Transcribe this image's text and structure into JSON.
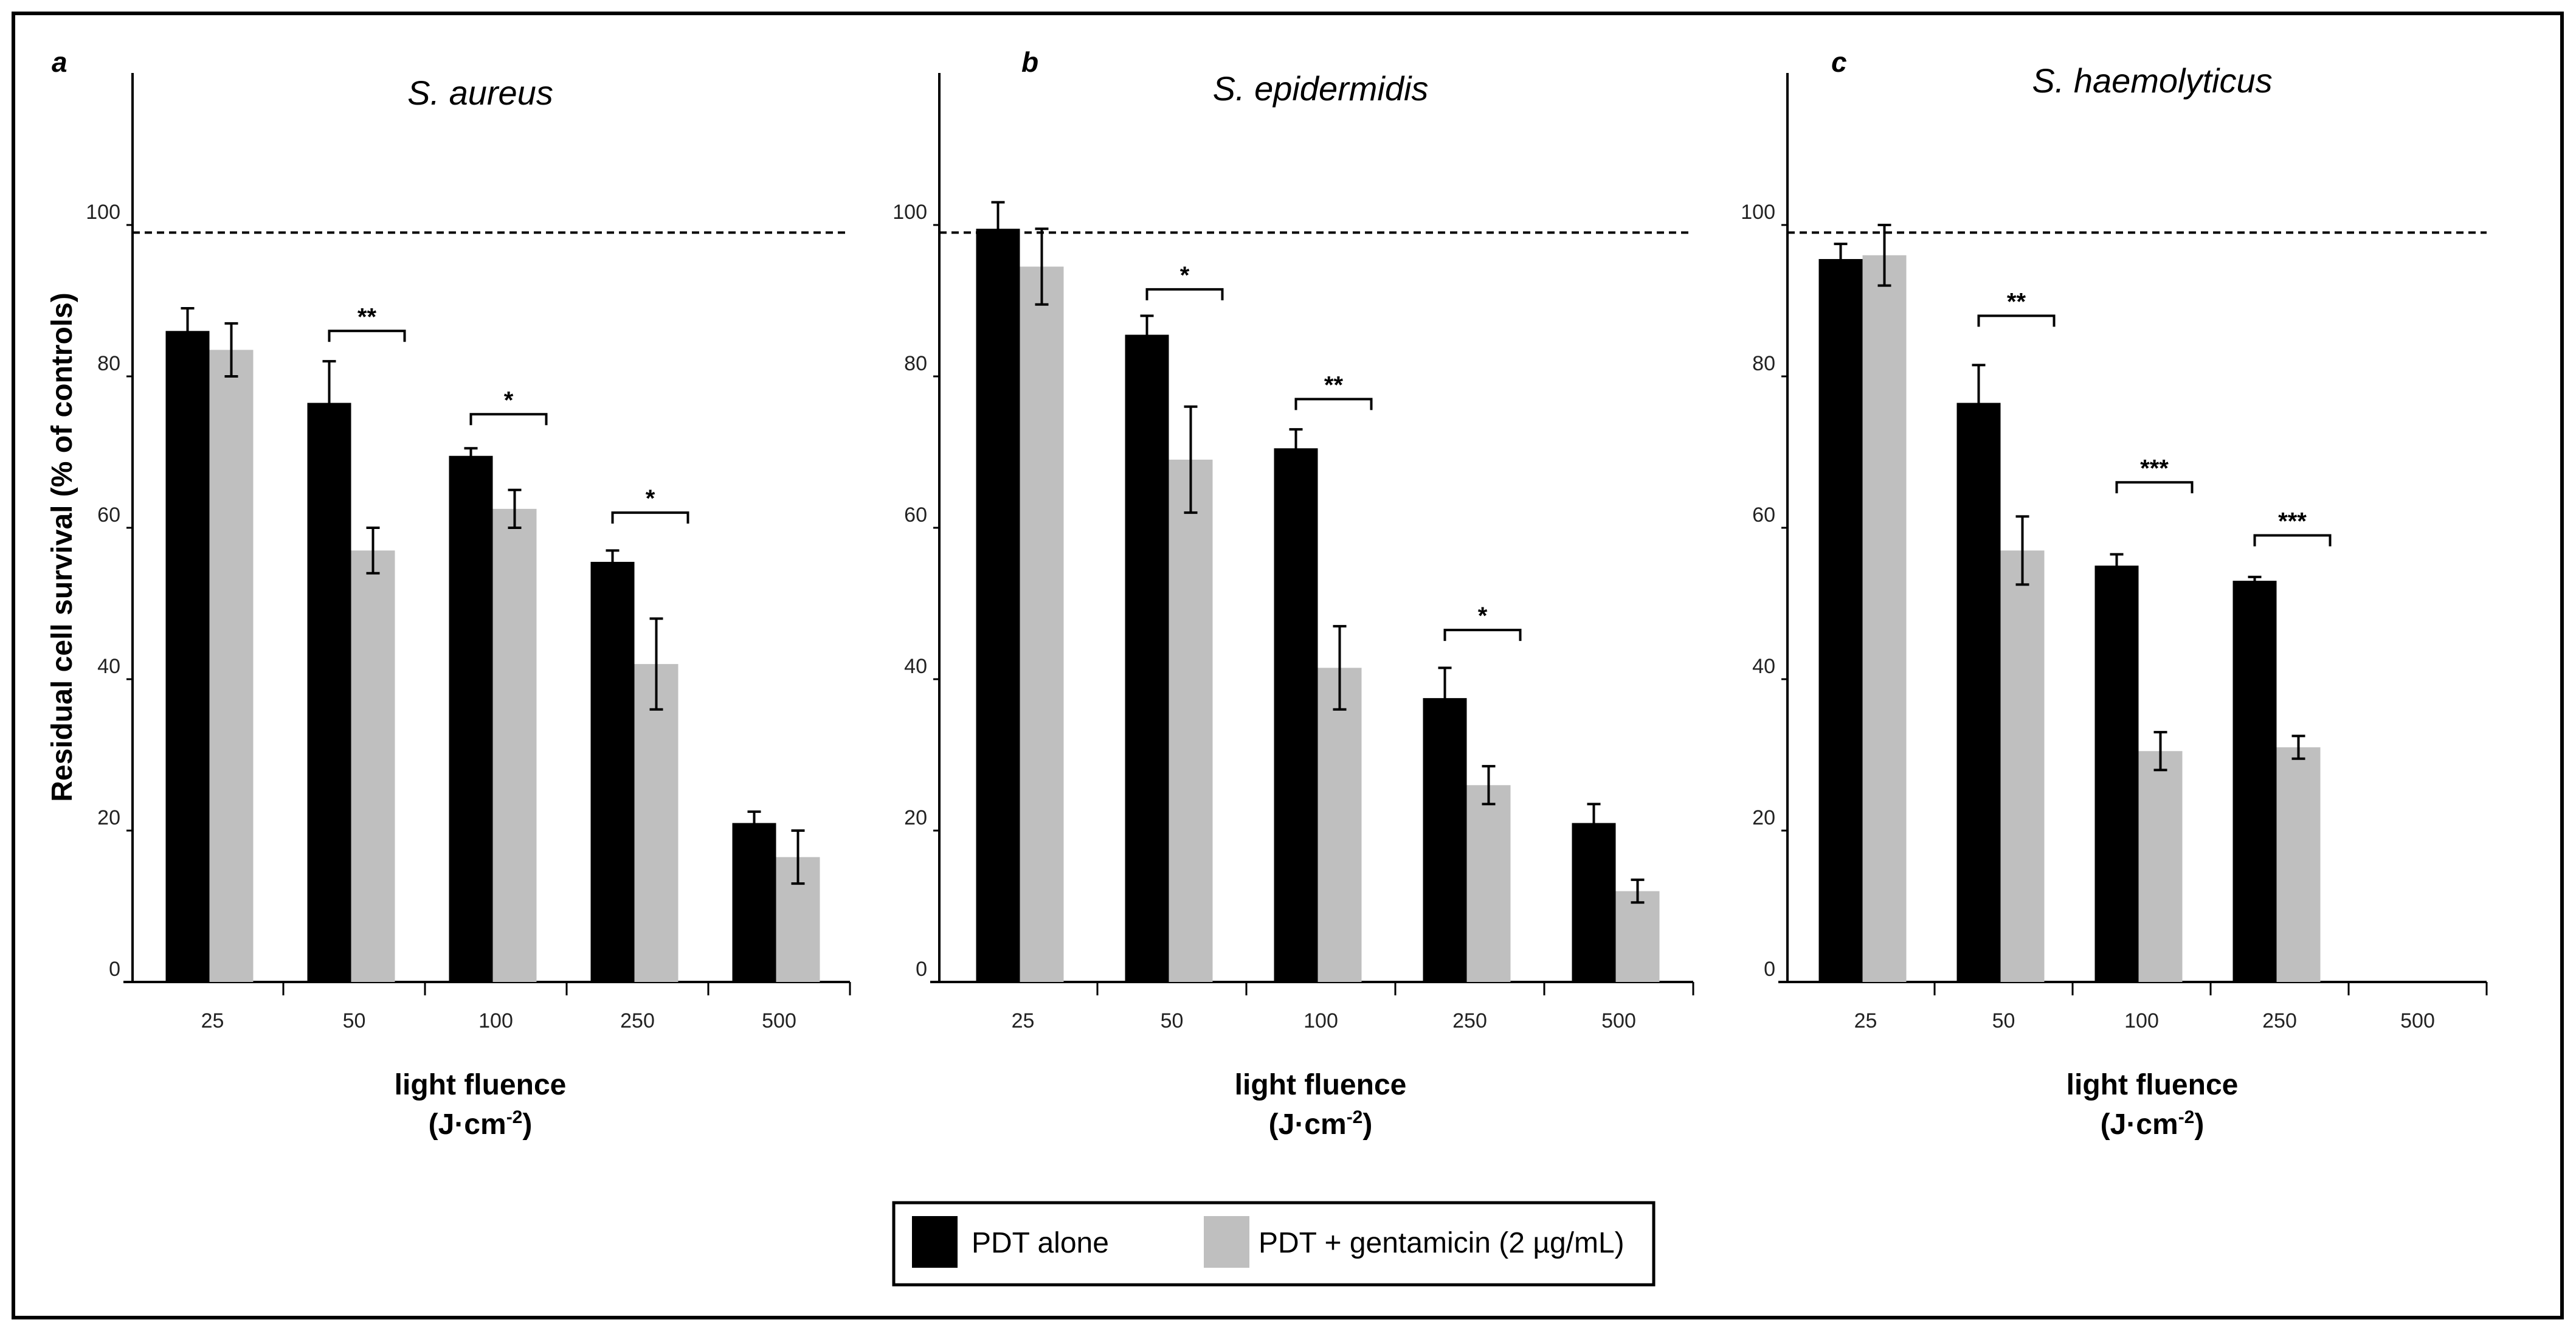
{
  "figure": {
    "ylabel": "Residual cell survival (% of controls)",
    "xlabel_line1": "light fluence",
    "xlabel_line2": "(J·cm",
    "xlabel_sup": "-2",
    "xlabel_close": ")",
    "legend": {
      "series1": "PDT alone",
      "series2": "PDT + gentamicin (2 µg/mL)"
    },
    "colors": {
      "series1": "#000000",
      "series2": "#bfbfbf",
      "reference": "#000000"
    }
  },
  "chart_data": [
    {
      "type": "bar",
      "panel_letter": "a",
      "title": "S. aureus",
      "categories": [
        "25",
        "50",
        "100",
        "250",
        "500"
      ],
      "yticks": [
        "0",
        "20",
        "40",
        "60",
        "80",
        "100"
      ],
      "ylim": [
        0,
        120
      ],
      "reference_line": 99,
      "series": [
        {
          "name": "PDT alone",
          "values": [
            86,
            76.5,
            69.5,
            55.5,
            21
          ],
          "errors": [
            3,
            5.5,
            1,
            1.5,
            1.5
          ]
        },
        {
          "name": "PDT + gentamicin (2 µg/mL)",
          "values": [
            83.5,
            57,
            62.5,
            42,
            16.5
          ],
          "errors": [
            3.5,
            3,
            2.5,
            6,
            3.5
          ]
        }
      ],
      "significance": [
        {
          "category_index": 1,
          "label": "**",
          "y": 86
        },
        {
          "category_index": 2,
          "label": "*",
          "y": 75
        },
        {
          "category_index": 3,
          "label": "*",
          "y": 62
        }
      ]
    },
    {
      "type": "bar",
      "panel_letter": "b",
      "title": "S. epidermidis",
      "categories": [
        "25",
        "50",
        "100",
        "250",
        "500"
      ],
      "yticks": [
        "0",
        "20",
        "40",
        "60",
        "80",
        "100"
      ],
      "ylim": [
        0,
        120
      ],
      "reference_line": 99,
      "series": [
        {
          "name": "PDT alone",
          "values": [
            99.5,
            85.5,
            70.5,
            37.5,
            21
          ],
          "errors": [
            3.5,
            2.5,
            2.5,
            4,
            2.5
          ]
        },
        {
          "name": "PDT + gentamicin (2 µg/mL)",
          "values": [
            94.5,
            69,
            41.5,
            26,
            12
          ],
          "errors": [
            5,
            7,
            5.5,
            2.5,
            1.5
          ]
        }
      ],
      "significance": [
        {
          "category_index": 1,
          "label": "*",
          "y": 91.5
        },
        {
          "category_index": 2,
          "label": "**",
          "y": 77
        },
        {
          "category_index": 3,
          "label": "*",
          "y": 46.5
        }
      ]
    },
    {
      "type": "bar",
      "panel_letter": "c",
      "title": "S. haemolyticus",
      "categories": [
        "25",
        "50",
        "100",
        "250",
        "500"
      ],
      "yticks": [
        "0",
        "20",
        "40",
        "60",
        "80",
        "100"
      ],
      "ylim": [
        0,
        120
      ],
      "reference_line": 99,
      "series": [
        {
          "name": "PDT alone",
          "values": [
            95.5,
            76.5,
            55,
            53,
            null
          ],
          "errors": [
            2,
            5,
            1.5,
            0.5,
            null
          ]
        },
        {
          "name": "PDT + gentamicin (2 µg/mL)",
          "values": [
            96,
            57,
            30.5,
            31,
            null
          ],
          "errors": [
            4,
            4.5,
            2.5,
            1.5,
            null
          ]
        }
      ],
      "significance": [
        {
          "category_index": 1,
          "label": "**",
          "y": 88
        },
        {
          "category_index": 2,
          "label": "***",
          "y": 66
        },
        {
          "category_index": 3,
          "label": "***",
          "y": 59
        }
      ]
    }
  ]
}
